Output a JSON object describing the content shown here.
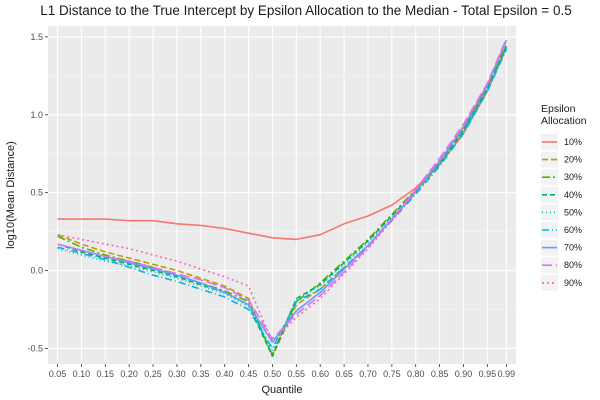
{
  "chart_data": {
    "type": "line",
    "title": "L1 Distance to the True Intercept by Epsilon Allocation to the Median - Total Epsilon = 0.5",
    "xlabel": "Quantile",
    "ylabel": "log10(Mean Distance)",
    "xlim": [
      0.03,
      1.01
    ],
    "ylim": [
      -0.6,
      1.57
    ],
    "grid": true,
    "legend_position": "right",
    "legend_title": [
      "Epsilon",
      "Allocation"
    ],
    "x_tick_labels": [
      "0.05",
      "0.10",
      "0.15",
      "0.20",
      "0.25",
      "0.30",
      "0.35",
      "0.40",
      "0.45",
      "0.50",
      "0.55",
      "0.60",
      "0.65",
      "0.70",
      "0.75",
      "0.80",
      "0.85",
      "0.90",
      "0.95",
      "0.99"
    ],
    "y_ticks": [
      -0.5,
      0.0,
      0.5,
      1.0,
      1.5
    ],
    "y_tick_labels": [
      "-0.5",
      "0.0",
      "0.5",
      "1.0",
      "1.5"
    ],
    "x": [
      0.05,
      0.1,
      0.15,
      0.2,
      0.25,
      0.3,
      0.35,
      0.4,
      0.45,
      0.5,
      0.55,
      0.6,
      0.65,
      0.7,
      0.75,
      0.8,
      0.85,
      0.9,
      0.95,
      0.99
    ],
    "series": [
      {
        "name": "10%",
        "color": "#F8766D",
        "dash": "solid",
        "values": [
          0.33,
          0.33,
          0.33,
          0.32,
          0.32,
          0.3,
          0.29,
          0.27,
          0.24,
          0.21,
          0.2,
          0.23,
          0.3,
          0.35,
          0.42,
          0.53,
          0.68,
          0.88,
          1.15,
          1.43
        ]
      },
      {
        "name": "20%",
        "color": "#C49A00",
        "dash": "6,3",
        "values": [
          0.23,
          0.17,
          0.12,
          0.08,
          0.04,
          0.0,
          -0.05,
          -0.1,
          -0.18,
          -0.55,
          -0.22,
          -0.12,
          0.02,
          0.16,
          0.33,
          0.5,
          0.68,
          0.9,
          1.17,
          1.44
        ]
      },
      {
        "name": "30%",
        "color": "#53B400",
        "dash": "8,3,2,3",
        "values": [
          0.22,
          0.15,
          0.1,
          0.06,
          0.02,
          -0.03,
          -0.08,
          -0.13,
          -0.2,
          -0.54,
          -0.2,
          -0.08,
          0.06,
          0.2,
          0.36,
          0.52,
          0.7,
          0.91,
          1.18,
          1.45
        ]
      },
      {
        "name": "40%",
        "color": "#00B163",
        "dash": "5,3",
        "values": [
          0.17,
          0.12,
          0.08,
          0.04,
          0.0,
          -0.04,
          -0.09,
          -0.14,
          -0.22,
          -0.55,
          -0.18,
          -0.09,
          0.05,
          0.19,
          0.35,
          0.51,
          0.69,
          0.9,
          1.17,
          1.44
        ]
      },
      {
        "name": "50%",
        "color": "#00C0B8",
        "dash": "1,3",
        "values": [
          0.14,
          0.1,
          0.06,
          0.03,
          -0.01,
          -0.05,
          -0.1,
          -0.15,
          -0.23,
          -0.52,
          -0.19,
          -0.1,
          0.04,
          0.18,
          0.34,
          0.5,
          0.68,
          0.89,
          1.16,
          1.43
        ]
      },
      {
        "name": "60%",
        "color": "#00B4EF",
        "dash": "7,3,1,3",
        "values": [
          0.15,
          0.11,
          0.07,
          0.02,
          -0.03,
          -0.07,
          -0.12,
          -0.17,
          -0.25,
          -0.5,
          -0.2,
          -0.12,
          0.02,
          0.16,
          0.32,
          0.49,
          0.67,
          0.88,
          1.15,
          1.42
        ]
      },
      {
        "name": "70%",
        "color": "#619CFF",
        "dash": "solid",
        "values": [
          0.17,
          0.13,
          0.09,
          0.05,
          0.01,
          -0.03,
          -0.08,
          -0.14,
          -0.22,
          -0.46,
          -0.26,
          -0.14,
          0.01,
          0.16,
          0.33,
          0.51,
          0.7,
          0.92,
          1.19,
          1.48
        ]
      },
      {
        "name": "80%",
        "color": "#DB72FB",
        "dash": "10,4",
        "values": [
          0.17,
          0.13,
          0.09,
          0.06,
          0.02,
          -0.02,
          -0.06,
          -0.11,
          -0.19,
          -0.44,
          -0.28,
          -0.16,
          -0.01,
          0.15,
          0.33,
          0.52,
          0.72,
          0.94,
          1.2,
          1.49
        ]
      },
      {
        "name": "90%",
        "color": "#FF61C3",
        "dash": "2,3",
        "values": [
          0.23,
          0.2,
          0.17,
          0.14,
          0.1,
          0.06,
          0.01,
          -0.04,
          -0.1,
          -0.46,
          -0.3,
          -0.18,
          -0.02,
          0.14,
          0.32,
          0.51,
          0.71,
          0.93,
          1.19,
          1.47
        ]
      }
    ]
  }
}
